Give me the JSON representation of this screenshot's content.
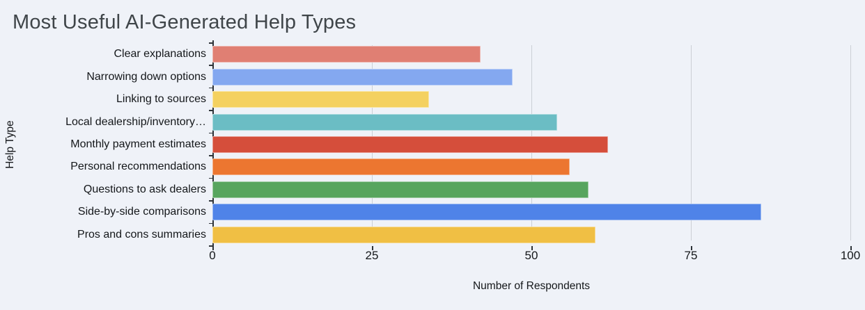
{
  "chart_data": {
    "type": "bar",
    "orientation": "horizontal",
    "title": "Most Useful AI-Generated Help Types",
    "xlabel": "Number of Respondents",
    "ylabel": "Help Type",
    "xlim": [
      0,
      100
    ],
    "x_ticks": [
      "0",
      "25",
      "50",
      "75",
      "100"
    ],
    "x_tick_values": [
      0,
      25,
      50,
      75,
      100
    ],
    "grid": true,
    "legend": false,
    "categories": [
      "Clear explanations",
      "Narrowing down options",
      "Linking to sources",
      "Local dealership/inventory…",
      "Monthly payment estimates",
      "Personal recommendations",
      "Questions to ask dealers",
      "Side-by-side comparisons",
      "Pros and cons summaries"
    ],
    "values": [
      42,
      47,
      34,
      54,
      62,
      56,
      59,
      86,
      60
    ],
    "bar_colors": [
      "#E07F73",
      "#84A8F0",
      "#F4D160",
      "#6BBDC4",
      "#D54E3B",
      "#EC7630",
      "#57A55E",
      "#4F83E8",
      "#F0BF44"
    ]
  },
  "colors": {
    "background": "#EFF2F8",
    "title_text": "#3F4549",
    "axis_text": "#14171A",
    "gridline": "#CBCFD5",
    "axis_line": "#2E3338"
  }
}
